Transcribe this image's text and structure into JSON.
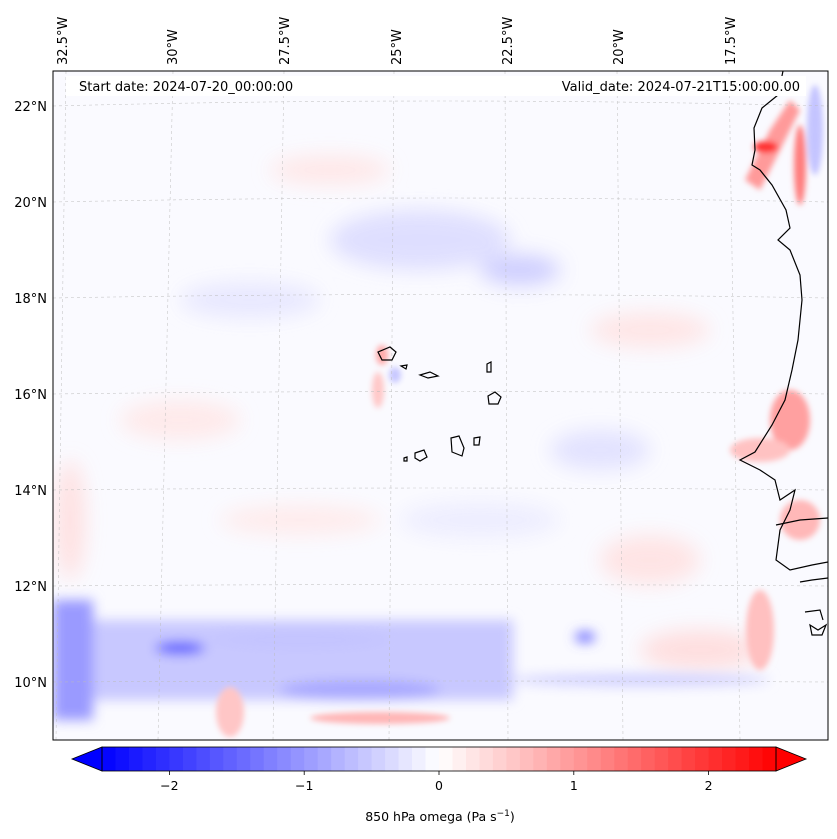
{
  "header": {
    "start_date": "Start date: 2024-07-20_00:00:00",
    "valid_date": "Valid_date: 2024-07-21T15:00:00.00"
  },
  "axes": {
    "lon_labels": [
      "32.5°W",
      "30°W",
      "27.5°W",
      "25°W",
      "22.5°W",
      "20°W",
      "17.5°W"
    ],
    "lat_labels": [
      "22°N",
      "20°N",
      "18°N",
      "16°N",
      "14°N",
      "12°N",
      "10°N"
    ]
  },
  "colorbar": {
    "tick_labels": [
      "−2",
      "−1",
      "0",
      "1",
      "2"
    ],
    "tick_values": [
      -2,
      -1,
      0,
      1,
      2
    ],
    "range": [
      -2.5,
      2.5
    ],
    "label_main": "850 hPa omega (Pa s",
    "label_sup": "−1",
    "label_end": ")",
    "colormap": "bwr",
    "color_low": "#0000ff",
    "color_mid": "#ffffff",
    "color_high": "#ff0000"
  }
}
